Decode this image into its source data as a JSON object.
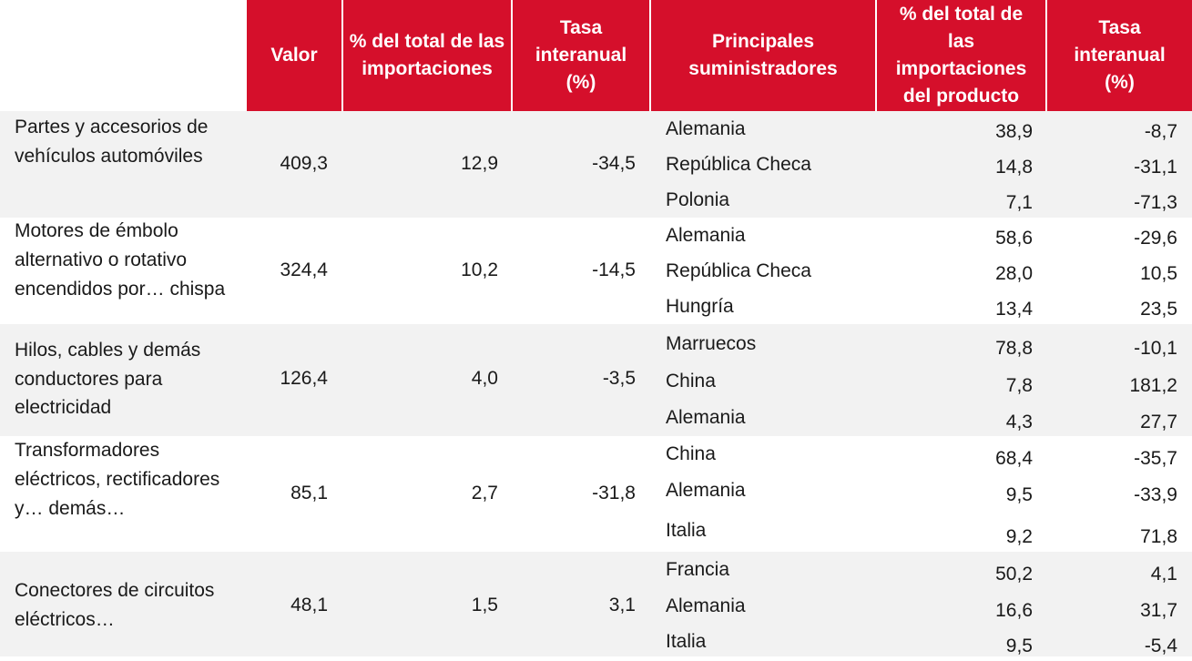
{
  "header": {
    "valor": "Valor",
    "pct_total": "% del total de las importaciones",
    "tasa": "Tasa interanual (%)",
    "suministradores": "Principales suministradores",
    "pct_producto": "% del total de las importaciones del producto",
    "tasa2": "Tasa interanual (%)"
  },
  "rows": [
    {
      "product": "Partes y accesorios de vehículos automóviles",
      "valor": "409,3",
      "pct": "12,9",
      "tasa": "-34,5",
      "suppliers": [
        {
          "name": "Alemania",
          "pct": "38,9",
          "tasa": "-8,7"
        },
        {
          "name": "República Checa",
          "pct": "14,8",
          "tasa": "-31,1"
        },
        {
          "name": "Polonia",
          "pct": "7,1",
          "tasa": "-71,3"
        }
      ]
    },
    {
      "product": "Motores de émbolo alternativo o rotativo encendidos por… chispa",
      "valor": "324,4",
      "pct": "10,2",
      "tasa": "-14,5",
      "suppliers": [
        {
          "name": "Alemania",
          "pct": "58,6",
          "tasa": "-29,6"
        },
        {
          "name": "República Checa",
          "pct": "28,0",
          "tasa": "10,5"
        },
        {
          "name": "Hungría",
          "pct": "13,4",
          "tasa": "23,5"
        }
      ]
    },
    {
      "product": "Hilos, cables y demás conductores para electricidad",
      "valor": "126,4",
      "pct": "4,0",
      "tasa": "-3,5",
      "suppliers": [
        {
          "name": "Marruecos",
          "pct": "78,8",
          "tasa": "-10,1"
        },
        {
          "name": "China",
          "pct": "7,8",
          "tasa": "181,2"
        },
        {
          "name": "Alemania",
          "pct": "4,3",
          "tasa": "27,7"
        }
      ]
    },
    {
      "product": "Transformadores eléctricos, rectificadores y… demás…",
      "valor": "85,1",
      "pct": "2,7",
      "tasa": "-31,8",
      "suppliers": [
        {
          "name": "China",
          "pct": "68,4",
          "tasa": "-35,7"
        },
        {
          "name": "Alemania",
          "pct": "9,5",
          "tasa": "-33,9"
        },
        {
          "name": "Italia",
          "pct": "9,2",
          "tasa": "71,8"
        }
      ]
    },
    {
      "product": "Conectores de circuitos eléctricos…",
      "valor": "48,1",
      "pct": "1,5",
      "tasa": "3,1",
      "suppliers": [
        {
          "name": "Francia",
          "pct": "50,2",
          "tasa": "4,1"
        },
        {
          "name": "Alemania",
          "pct": "16,6",
          "tasa": "31,7"
        },
        {
          "name": "Italia",
          "pct": "9,5",
          "tasa": "-5,4"
        }
      ]
    }
  ]
}
